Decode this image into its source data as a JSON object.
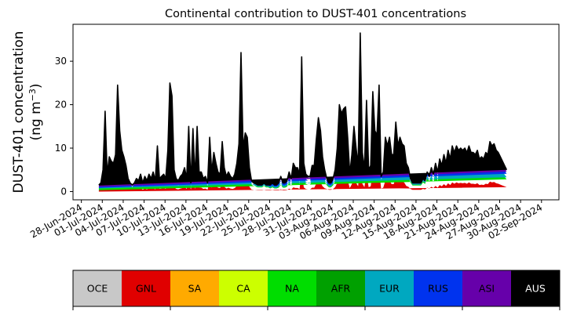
{
  "chart_data": {
    "type": "area",
    "title": "Continental contribution to DUST-401 concentrations",
    "ylabel_line1": "DUST-401 concentration",
    "ylabel_line2": "(ng m",
    "ylabel_sup": "−3",
    "ylabel_close": ")",
    "ylim": [
      -1.9,
      38.5
    ],
    "xlim": [
      -1.2,
      68.5
    ],
    "yticks": [
      0,
      10,
      20,
      30
    ],
    "xticks": [
      {
        "x": 0,
        "label": "28-Jun-2024"
      },
      {
        "x": 3,
        "label": "01-Jul-2024"
      },
      {
        "x": 6,
        "label": "04-Jul-2024"
      },
      {
        "x": 9,
        "label": "07-Jul-2024"
      },
      {
        "x": 12,
        "label": "10-Jul-2024"
      },
      {
        "x": 15,
        "label": "13-Jul-2024"
      },
      {
        "x": 18,
        "label": "16-Jul-2024"
      },
      {
        "x": 21,
        "label": "19-Jul-2024"
      },
      {
        "x": 24,
        "label": "22-Jul-2024"
      },
      {
        "x": 27,
        "label": "25-Jul-2024"
      },
      {
        "x": 30,
        "label": "28-Jul-2024"
      },
      {
        "x": 33,
        "label": "31-Jul-2024"
      },
      {
        "x": 36,
        "label": "03-Aug-2024"
      },
      {
        "x": 39,
        "label": "06-Aug-2024"
      },
      {
        "x": 42,
        "label": "09-Aug-2024"
      },
      {
        "x": 45,
        "label": "12-Aug-2024"
      },
      {
        "x": 48,
        "label": "15-Aug-2024"
      },
      {
        "x": 51,
        "label": "18-Aug-2024"
      },
      {
        "x": 54,
        "label": "21-Aug-2024"
      },
      {
        "x": 57,
        "label": "24-Aug-2024"
      },
      {
        "x": 60,
        "label": "27-Aug-2024"
      },
      {
        "x": 63,
        "label": "30-Aug-2024"
      },
      {
        "x": 66,
        "label": "02-Sep-2024"
      }
    ],
    "x_unit": "days since 28-Jun-2024",
    "x": [
      2.5,
      2.8,
      3.1,
      3.4,
      3.7,
      4.0,
      4.3,
      4.6,
      4.9,
      5.2,
      5.5,
      5.8,
      6.1,
      6.4,
      6.7,
      7.0,
      7.3,
      7.6,
      7.9,
      8.2,
      8.5,
      8.8,
      9.1,
      9.4,
      9.7,
      10.0,
      10.3,
      10.6,
      10.9,
      11.2,
      11.5,
      11.8,
      12.1,
      12.4,
      12.7,
      13.0,
      13.3,
      13.6,
      13.9,
      14.2,
      14.5,
      14.8,
      15.1,
      15.4,
      15.7,
      16.0,
      16.3,
      16.6,
      16.9,
      17.2,
      17.5,
      17.8,
      18.1,
      18.4,
      18.7,
      19.0,
      19.3,
      19.6,
      19.9,
      20.2,
      20.5,
      20.8,
      21.1,
      21.4,
      21.7,
      22.0,
      22.3,
      22.6,
      22.9,
      23.2,
      23.5,
      23.8,
      24.1,
      24.4,
      24.7,
      25.0,
      25.3,
      25.6,
      25.9,
      26.2,
      26.5,
      26.8,
      27.1,
      27.4,
      27.7,
      28.0,
      28.3,
      28.6,
      28.9,
      29.2,
      29.5,
      29.8,
      30.1,
      30.4,
      30.7,
      31.0,
      31.3,
      31.6,
      31.9,
      32.2,
      32.5,
      32.8,
      33.1,
      33.4,
      33.7,
      34.0,
      34.3,
      34.6,
      34.9,
      35.2,
      35.5,
      35.8,
      36.1,
      36.4,
      36.7,
      37.0,
      37.3,
      37.6,
      37.9,
      38.2,
      38.5,
      38.8,
      39.1,
      39.4,
      39.7,
      40.0,
      40.3,
      40.6,
      40.9,
      41.2,
      41.5,
      41.8,
      42.1,
      42.4,
      42.7,
      43.0,
      43.3,
      43.6,
      43.9,
      44.2,
      44.5,
      44.8,
      45.1,
      45.4,
      45.7,
      46.0,
      46.3,
      46.6,
      46.9,
      47.2,
      47.5,
      47.8,
      48.1,
      48.4,
      48.7,
      49.0,
      49.3,
      49.6,
      49.9,
      50.2,
      50.5,
      50.8,
      51.1,
      51.4,
      51.7,
      52.0,
      52.3,
      52.6,
      52.9,
      53.2,
      53.5,
      53.8,
      54.1,
      54.4,
      54.7,
      55.0,
      55.3,
      55.6,
      55.9,
      56.2,
      56.5,
      56.8,
      57.1,
      57.4,
      57.7,
      58.0,
      58.3,
      58.6,
      58.9,
      59.2,
      59.5,
      59.8,
      60.1,
      60.4,
      60.7,
      61.0,
      61.3,
      61.6,
      61.9,
      62.2,
      62.5,
      62.8,
      63.1,
      63.4,
      63.7,
      64.0
    ],
    "total": [
      1.5,
      2.0,
      5.0,
      18.5,
      4.0,
      8.0,
      7.0,
      6.5,
      8.5,
      24.5,
      14.0,
      9.5,
      8.0,
      6.0,
      3.0,
      2.0,
      1.5,
      2.0,
      3.0,
      2.5,
      4.0,
      2.0,
      3.5,
      2.5,
      4.0,
      3.0,
      4.5,
      2.5,
      10.5,
      3.0,
      3.5,
      4.0,
      3.0,
      9.5,
      25.0,
      22.0,
      5.0,
      3.0,
      2.5,
      3.5,
      4.0,
      5.5,
      3.0,
      15.0,
      2.0,
      14.5,
      3.0,
      15.0,
      4.5,
      4.5,
      3.0,
      3.5,
      2.0,
      12.5,
      4.5,
      9.0,
      6.5,
      4.5,
      4.0,
      11.5,
      5.5,
      3.5,
      4.5,
      3.5,
      3.0,
      4.0,
      6.5,
      11.0,
      32.0,
      10.0,
      13.5,
      12.5,
      5.5,
      2.5,
      2.0,
      1.8,
      1.5,
      1.5,
      1.5,
      2.0,
      1.5,
      1.5,
      1.5,
      2.0,
      1.5,
      1.5,
      2.0,
      3.5,
      2.0,
      2.0,
      2.5,
      4.5,
      3.0,
      6.5,
      5.5,
      5.5,
      4.0,
      31.0,
      6.5,
      4.0,
      3.5,
      3.5,
      6.0,
      6.0,
      12.0,
      17.0,
      14.0,
      8.0,
      5.0,
      3.0,
      2.0,
      2.0,
      3.0,
      5.0,
      10.0,
      20.0,
      18.0,
      19.0,
      19.5,
      12.5,
      4.0,
      8.5,
      15.0,
      10.0,
      6.0,
      36.5,
      9.0,
      5.0,
      21.0,
      5.0,
      6.0,
      23.0,
      14.0,
      13.0,
      24.5,
      3.5,
      4.5,
      12.5,
      10.5,
      12.5,
      8.5,
      8.5,
      16.0,
      10.5,
      12.5,
      11.0,
      10.5,
      6.5,
      5.5,
      3.0,
      2.0,
      2.0,
      2.0,
      2.0,
      2.0,
      3.0,
      2.5,
      4.5,
      3.5,
      5.5,
      4.0,
      6.5,
      4.5,
      7.5,
      6.0,
      8.5,
      6.5,
      9.5,
      7.5,
      10.5,
      9.0,
      10.5,
      9.5,
      10.0,
      9.5,
      10.0,
      9.0,
      10.5,
      9.0,
      9.0,
      8.5,
      9.5,
      7.5,
      8.0,
      7.5,
      9.0,
      8.5,
      11.5,
      10.5,
      11.0,
      9.5,
      9.0,
      8.0,
      7.0,
      6.0,
      5.0
    ],
    "series": [
      {
        "name": "GNL",
        "color": "#e00000"
      },
      {
        "name": "NA",
        "color": "#00dd00"
      },
      {
        "name": "EUR",
        "color": "#00a8c0"
      },
      {
        "name": "RUS",
        "color": "#0033ee"
      },
      {
        "name": "ASI",
        "color": "#6600aa"
      },
      {
        "name": "AUS",
        "color": "#000000"
      }
    ],
    "legend": [
      {
        "name": "OCE",
        "color": "#c8c8c8",
        "text_color": "#000000"
      },
      {
        "name": "GNL",
        "color": "#e00000",
        "text_color": "#000000"
      },
      {
        "name": "SA",
        "color": "#ffaa00",
        "text_color": "#000000"
      },
      {
        "name": "CA",
        "color": "#ccff00",
        "text_color": "#000000"
      },
      {
        "name": "NA",
        "color": "#00dd00",
        "text_color": "#000000"
      },
      {
        "name": "AFR",
        "color": "#00a000",
        "text_color": "#000000"
      },
      {
        "name": "EUR",
        "color": "#00a8c0",
        "text_color": "#000000"
      },
      {
        "name": "RUS",
        "color": "#0033ee",
        "text_color": "#000000"
      },
      {
        "name": "ASI",
        "color": "#6600aa",
        "text_color": "#000000"
      },
      {
        "name": "AUS",
        "color": "#000000",
        "text_color": "#ffffff"
      }
    ],
    "legend_placement": "bottom",
    "grid": false
  }
}
